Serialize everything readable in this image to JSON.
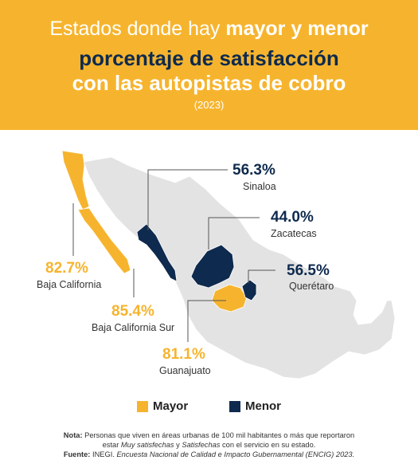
{
  "header": {
    "title_part1": "Estados donde hay",
    "title_part2": "mayor y menor",
    "title_line2": "porcentaje de satisfacción",
    "title_line3": "con las autopistas de cobro",
    "year": "(2023)"
  },
  "states": {
    "sinaloa": {
      "value": "56.3%",
      "name": "Sinaloa"
    },
    "zacatecas": {
      "value": "44.0%",
      "name": "Zacatecas"
    },
    "queretaro": {
      "value": "56.5%",
      "name": "Querétaro"
    },
    "baja_california": {
      "value": "82.7%",
      "name": "Baja California"
    },
    "baja_california_sur": {
      "value": "85.4%",
      "name": "Baja California Sur"
    },
    "guanajuato": {
      "value": "81.1%",
      "name": "Guanajuato"
    }
  },
  "legend": {
    "mayor": "Mayor",
    "menor": "Menor"
  },
  "footer": {
    "nota_label": "Nota:",
    "nota_text1": " Personas que viven en áreas urbanas de 100 mil habitantes o más que reportaron",
    "nota_text2_a": "estar ",
    "nota_text2_em1": "Muy satisfechas",
    "nota_text2_b": " y ",
    "nota_text2_em2": "Satisfechas",
    "nota_text2_c": " con el servicio en su estado.",
    "fuente_label": "Fuente:",
    "fuente_text1": " INEGI. ",
    "fuente_text2": "Encuesta Nacional de Calidad e Impacto Gubernamental (ENCIG) 2023."
  },
  "colors": {
    "mayor": "#f6b42e",
    "menor": "#0e2a4e",
    "base": "#e3e3e3"
  }
}
